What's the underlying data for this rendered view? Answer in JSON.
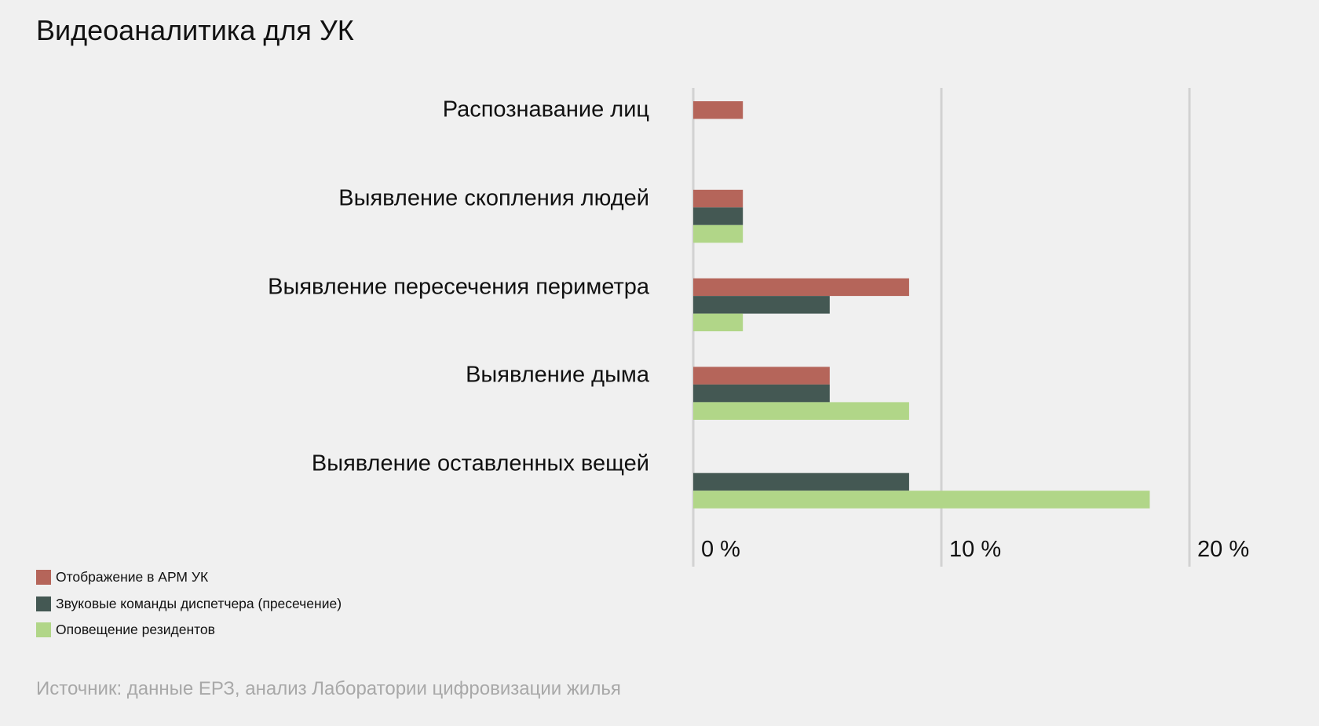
{
  "title": "Видеоаналитика для УК",
  "source": "Источник: данные ЕРЗ, анализ Лаборатории цифровизации жилья",
  "chart_data": {
    "type": "bar",
    "orientation": "horizontal",
    "title": "Видеоаналитика для УК",
    "xlabel": "",
    "ylabel": "",
    "categories": [
      "Распознавание лиц",
      "Выявление скопления людей",
      "Выявление пересечения периметра",
      "Выявление дыма",
      "Выявление оставленных вещей"
    ],
    "series": [
      {
        "name": "Отображение в АРМ УК",
        "color": "#b5655a",
        "values": [
          2,
          2,
          8.7,
          5.5,
          0
        ]
      },
      {
        "name": "Звуковые команды диспетчера (пресечение)",
        "color": "#445853",
        "values": [
          0,
          2,
          5.5,
          5.5,
          8.7
        ]
      },
      {
        "name": "Оповещение резидентов",
        "color": "#b1d688",
        "values": [
          0,
          2,
          2,
          8.7,
          18.4
        ]
      }
    ],
    "xlim": [
      0,
      20
    ],
    "ticks": [
      "0 %",
      "10 %",
      "20 %"
    ],
    "tick_values": [
      0,
      10,
      20
    ],
    "grid": true,
    "legend_position": "bottom-left"
  }
}
